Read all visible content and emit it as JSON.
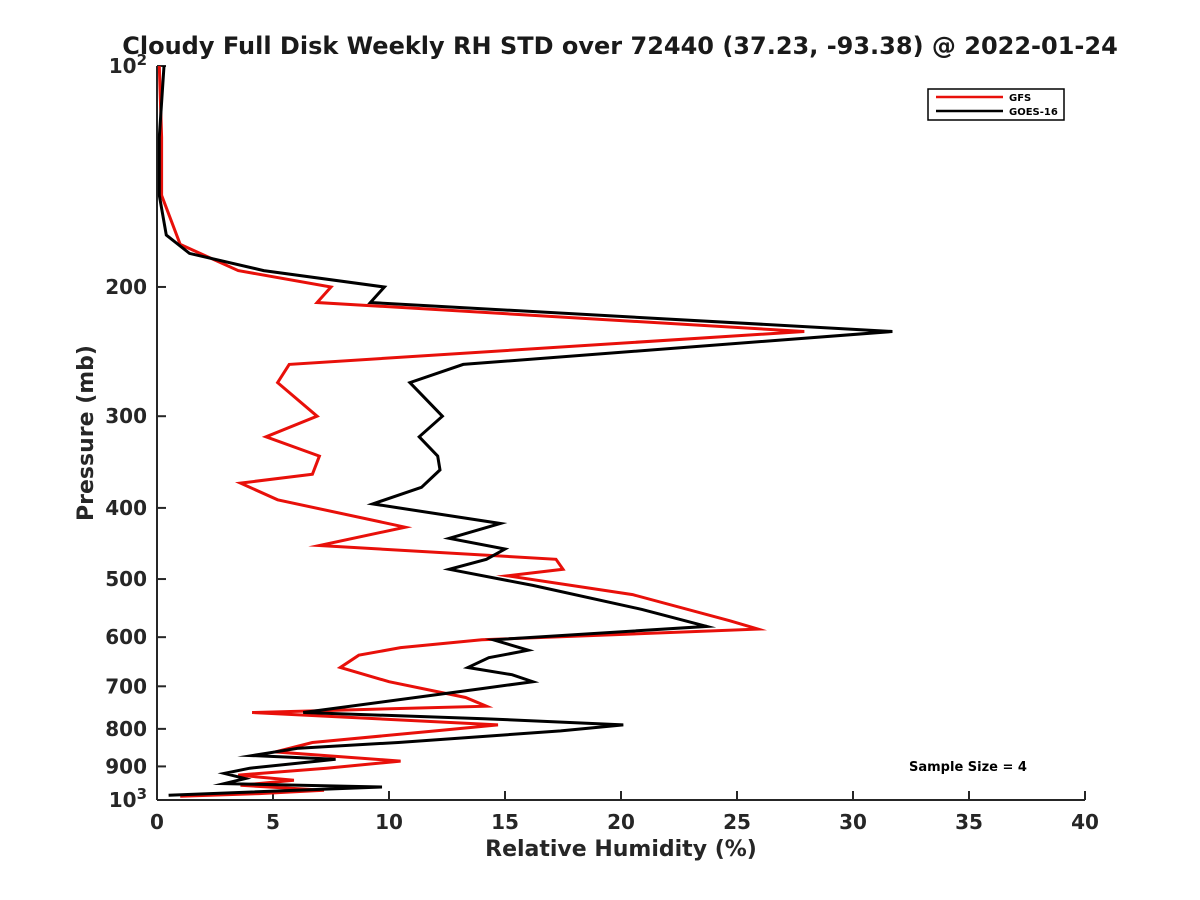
{
  "chart_data": {
    "type": "line",
    "title": "Cloudy Full Disk Weekly RH STD over 72440 (37.23, -93.38) @ 2022-01-24",
    "xlabel": "Relative Humidity (%)",
    "ylabel": "Pressure (mb)",
    "xlim": [
      0,
      40
    ],
    "ylim": [
      100,
      1000
    ],
    "y_scale": "log",
    "y_reversed": true,
    "grid": false,
    "legend_placement": "top-right",
    "x_ticks": [
      {
        "value": 0,
        "label": "0"
      },
      {
        "value": 5,
        "label": "5"
      },
      {
        "value": 10,
        "label": "10"
      },
      {
        "value": 15,
        "label": "15"
      },
      {
        "value": 20,
        "label": "20"
      },
      {
        "value": 25,
        "label": "25"
      },
      {
        "value": 30,
        "label": "30"
      },
      {
        "value": 35,
        "label": "35"
      },
      {
        "value": 40,
        "label": "40"
      }
    ],
    "y_ticks": [
      {
        "value": 100,
        "label": "10",
        "sup": "2"
      },
      {
        "value": 200,
        "label": "200"
      },
      {
        "value": 300,
        "label": "300"
      },
      {
        "value": 400,
        "label": "400"
      },
      {
        "value": 500,
        "label": "500"
      },
      {
        "value": 600,
        "label": "600"
      },
      {
        "value": 700,
        "label": "700"
      },
      {
        "value": 800,
        "label": "800"
      },
      {
        "value": 900,
        "label": "900"
      },
      {
        "value": 1000,
        "label": "10",
        "sup": "3"
      }
    ],
    "annotation": "Sample Size = 4",
    "series": [
      {
        "name": "GFS",
        "color": "#e8100a",
        "points": [
          [
            0.1,
            100
          ],
          [
            0.2,
            125
          ],
          [
            0.2,
            150
          ],
          [
            1.0,
            175
          ],
          [
            3.5,
            190
          ],
          [
            7.5,
            200
          ],
          [
            6.9,
            210
          ],
          [
            27.9,
            230
          ],
          [
            5.7,
            255
          ],
          [
            5.2,
            270
          ],
          [
            6.9,
            300
          ],
          [
            4.7,
            320
          ],
          [
            7.0,
            340
          ],
          [
            6.7,
            360
          ],
          [
            3.6,
            370
          ],
          [
            5.2,
            390
          ],
          [
            10.7,
            425
          ],
          [
            7.0,
            450
          ],
          [
            17.2,
            470
          ],
          [
            17.5,
            485
          ],
          [
            15.1,
            495
          ],
          [
            20.5,
            525
          ],
          [
            24.7,
            570
          ],
          [
            25.9,
            585
          ],
          [
            14.0,
            605
          ],
          [
            10.5,
            620
          ],
          [
            8.7,
            635
          ],
          [
            7.9,
            660
          ],
          [
            10.0,
            690
          ],
          [
            13.3,
            725
          ],
          [
            14.2,
            745
          ],
          [
            4.1,
            760
          ],
          [
            14.7,
            790
          ],
          [
            12.0,
            805
          ],
          [
            6.7,
            835
          ],
          [
            5.1,
            860
          ],
          [
            10.5,
            885
          ],
          [
            7.3,
            905
          ],
          [
            3.5,
            925
          ],
          [
            5.9,
            940
          ],
          [
            3.6,
            955
          ],
          [
            7.2,
            970
          ],
          [
            4.4,
            980
          ],
          [
            1.0,
            988
          ]
        ]
      },
      {
        "name": "GOES-16",
        "color": "#000000",
        "points": [
          [
            0.3,
            100
          ],
          [
            0.1,
            125
          ],
          [
            0.1,
            150
          ],
          [
            0.4,
            170
          ],
          [
            1.4,
            180
          ],
          [
            4.6,
            190
          ],
          [
            9.8,
            200
          ],
          [
            9.2,
            210
          ],
          [
            31.7,
            230
          ],
          [
            13.2,
            255
          ],
          [
            10.9,
            270
          ],
          [
            12.3,
            300
          ],
          [
            11.3,
            320
          ],
          [
            12.1,
            340
          ],
          [
            12.2,
            355
          ],
          [
            11.4,
            375
          ],
          [
            9.3,
            395
          ],
          [
            14.8,
            420
          ],
          [
            12.6,
            440
          ],
          [
            15.0,
            455
          ],
          [
            14.2,
            470
          ],
          [
            12.6,
            485
          ],
          [
            16.2,
            510
          ],
          [
            20.9,
            550
          ],
          [
            23.7,
            580
          ],
          [
            14.5,
            605
          ],
          [
            16.0,
            625
          ],
          [
            14.3,
            640
          ],
          [
            13.4,
            660
          ],
          [
            15.3,
            675
          ],
          [
            16.2,
            690
          ],
          [
            14.0,
            705
          ],
          [
            6.3,
            760
          ],
          [
            14.1,
            775
          ],
          [
            20.1,
            790
          ],
          [
            17.4,
            805
          ],
          [
            10.4,
            835
          ],
          [
            6.1,
            850
          ],
          [
            4.1,
            870
          ],
          [
            7.7,
            880
          ],
          [
            4.0,
            905
          ],
          [
            2.9,
            920
          ],
          [
            3.8,
            935
          ],
          [
            2.9,
            950
          ],
          [
            9.7,
            960
          ],
          [
            0.5,
            985
          ]
        ]
      }
    ]
  }
}
